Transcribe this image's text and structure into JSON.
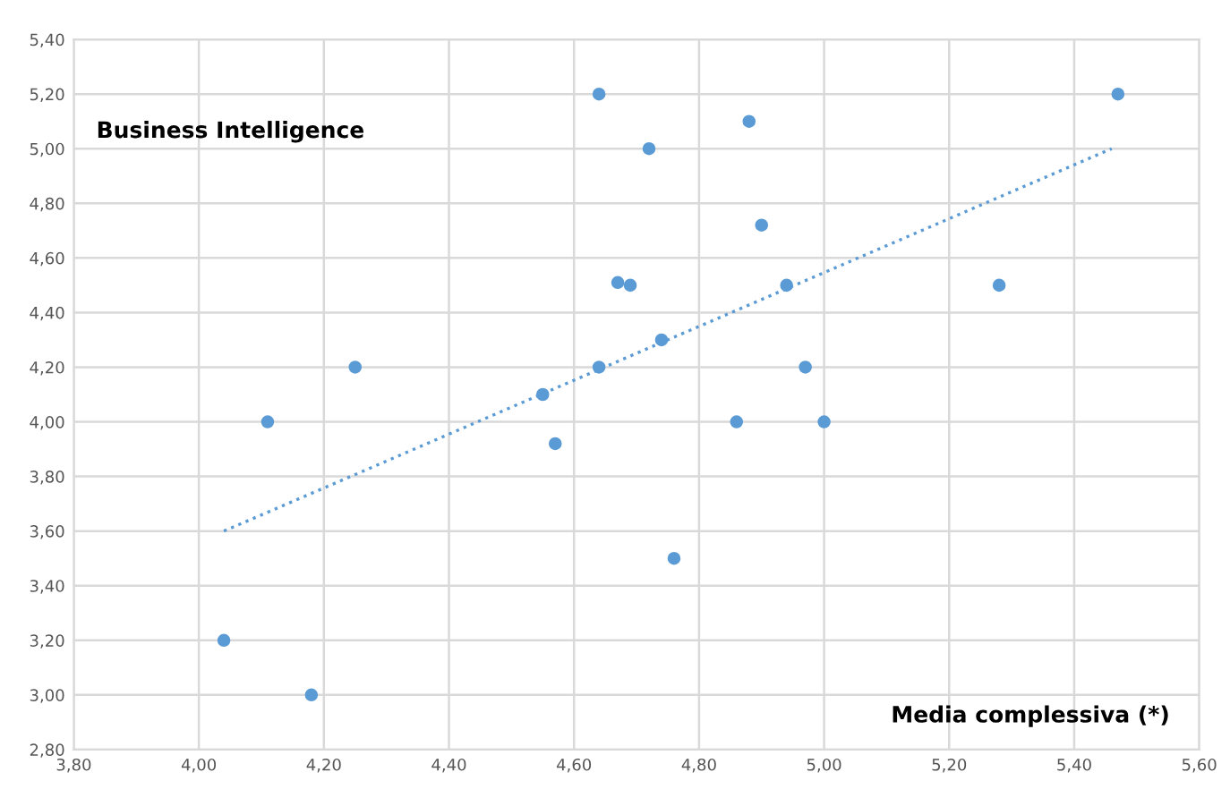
{
  "chart_data": {
    "type": "scatter",
    "xlabel": "Media complessiva (*)",
    "ylabel": "Business Intelligence",
    "series": [
      {
        "color": "#5b9bd5",
        "marker": "circle",
        "x": [
          4.64,
          4.67,
          4.69,
          4.25,
          4.64,
          5.47,
          4.88,
          4.72,
          4.9,
          4.94,
          5.28,
          4.74,
          4.97,
          4.11,
          4.55,
          4.57,
          4.04,
          4.18,
          4.86,
          5.0,
          4.76
        ],
        "values": [
          5.2,
          4.51,
          4.5,
          4.2,
          4.2,
          5.2,
          5.1,
          5.0,
          4.72,
          4.5,
          4.5,
          4.3,
          4.2,
          4.0,
          4.1,
          3.92,
          3.2,
          3.0,
          4.0,
          4.0,
          3.5
        ]
      },
      {
        "type": "line",
        "color": "#5b9bd5",
        "line_style": "dotted",
        "x": [
          4.04,
          5.46
        ],
        "values": [
          3.6,
          5.0
        ]
      }
    ],
    "xlim": [
      3.8,
      5.6
    ],
    "ylim": [
      2.8,
      5.4
    ],
    "xticks": [
      {
        "value": 3.8,
        "label": "3,80"
      },
      {
        "value": 4.0,
        "label": "4,00"
      },
      {
        "value": 4.2,
        "label": "4,20"
      },
      {
        "value": 4.4,
        "label": "4,40"
      },
      {
        "value": 4.6,
        "label": "4,60"
      },
      {
        "value": 4.8,
        "label": "4,80"
      },
      {
        "value": 5.0,
        "label": "5,00"
      },
      {
        "value": 5.2,
        "label": "5,20"
      },
      {
        "value": 5.4,
        "label": "5,40"
      },
      {
        "value": 5.6,
        "label": "5,60"
      }
    ],
    "yticks": [
      {
        "value": 2.8,
        "label": "2,80"
      },
      {
        "value": 3.0,
        "label": "3,00"
      },
      {
        "value": 3.2,
        "label": "3,20"
      },
      {
        "value": 3.4,
        "label": "3,40"
      },
      {
        "value": 3.6,
        "label": "3,60"
      },
      {
        "value": 3.8,
        "label": "3,80"
      },
      {
        "value": 4.0,
        "label": "4,00"
      },
      {
        "value": 4.2,
        "label": "4,20"
      },
      {
        "value": 4.4,
        "label": "4,40"
      },
      {
        "value": 4.6,
        "label": "4,60"
      },
      {
        "value": 4.8,
        "label": "4,80"
      },
      {
        "value": 5.0,
        "label": "5,00"
      },
      {
        "value": 5.2,
        "label": "5,20"
      },
      {
        "value": 5.4,
        "label": "5,40"
      }
    ],
    "grid": true,
    "legend": false
  }
}
